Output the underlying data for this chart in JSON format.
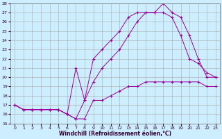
{
  "xlabel": "Windchill (Refroidissement éolien,°C)",
  "background_color": "#cceeff",
  "grid_color": "#aaaaaa",
  "line_color": "#990099",
  "xlim": [
    -0.5,
    23.5
  ],
  "ylim": [
    15,
    28
  ],
  "yticks": [
    15,
    16,
    17,
    18,
    19,
    20,
    21,
    22,
    23,
    24,
    25,
    26,
    27,
    28
  ],
  "xticks": [
    0,
    1,
    2,
    3,
    4,
    5,
    6,
    7,
    8,
    9,
    10,
    11,
    12,
    13,
    14,
    15,
    16,
    17,
    18,
    19,
    20,
    21,
    22,
    23
  ],
  "line1_x": [
    0,
    1,
    2,
    3,
    4,
    5,
    6,
    7,
    8,
    9,
    10,
    11,
    12,
    13,
    14,
    15,
    16,
    17,
    18,
    19,
    20,
    21,
    22,
    23
  ],
  "line1_y": [
    17.0,
    16.5,
    16.5,
    16.5,
    16.5,
    16.5,
    16.0,
    15.5,
    15.5,
    17.5,
    17.5,
    18.0,
    18.5,
    19.0,
    19.0,
    19.5,
    19.5,
    19.5,
    19.5,
    19.5,
    19.5,
    19.5,
    19.0,
    19.0
  ],
  "line2_x": [
    0,
    1,
    2,
    3,
    4,
    5,
    6,
    7,
    8,
    9,
    10,
    11,
    12,
    13,
    14,
    15,
    16,
    17,
    18,
    19,
    20,
    21,
    22,
    23
  ],
  "line2_y": [
    17.0,
    16.5,
    16.5,
    16.5,
    16.5,
    16.5,
    16.0,
    21.0,
    17.5,
    22.0,
    23.0,
    24.0,
    25.0,
    26.5,
    27.0,
    27.0,
    27.0,
    28.0,
    27.0,
    26.5,
    24.5,
    22.0,
    20.0,
    20.0
  ],
  "line3_x": [
    0,
    1,
    2,
    3,
    4,
    5,
    6,
    7,
    8,
    9,
    10,
    11,
    12,
    13,
    14,
    15,
    16,
    17,
    18,
    19,
    20,
    21,
    22,
    23
  ],
  "line3_y": [
    17.0,
    16.5,
    16.5,
    16.5,
    16.5,
    16.5,
    16.0,
    15.5,
    17.5,
    19.5,
    21.0,
    22.0,
    23.0,
    24.5,
    26.0,
    27.0,
    27.0,
    27.0,
    26.5,
    24.5,
    22.0,
    21.5,
    20.5,
    20.0
  ]
}
